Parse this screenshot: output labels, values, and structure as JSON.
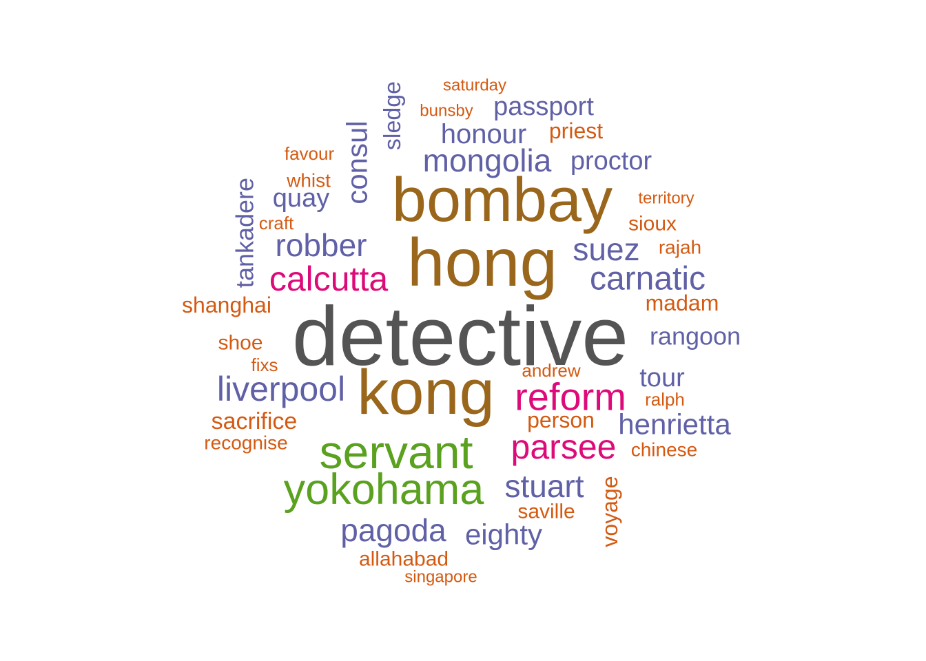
{
  "colors": {
    "gray": "#545454",
    "brown": "#99661b",
    "green": "#59a11e",
    "magenta": "#dd0a79",
    "purple": "#6060a6",
    "orange": "#d45a12"
  },
  "words": [
    {
      "text": "detective",
      "color": "gray"
    },
    {
      "text": "bombay",
      "color": "brown"
    },
    {
      "text": "hong",
      "color": "brown"
    },
    {
      "text": "kong",
      "color": "brown"
    },
    {
      "text": "servant",
      "color": "green"
    },
    {
      "text": "yokohama",
      "color": "green"
    },
    {
      "text": "calcutta",
      "color": "magenta"
    },
    {
      "text": "reform",
      "color": "magenta"
    },
    {
      "text": "parsee",
      "color": "magenta"
    },
    {
      "text": "mongolia",
      "color": "purple"
    },
    {
      "text": "honour",
      "color": "purple"
    },
    {
      "text": "passport",
      "color": "purple"
    },
    {
      "text": "proctor",
      "color": "purple"
    },
    {
      "text": "consul",
      "color": "purple"
    },
    {
      "text": "sledge",
      "color": "purple"
    },
    {
      "text": "tankadere",
      "color": "purple"
    },
    {
      "text": "quay",
      "color": "purple"
    },
    {
      "text": "robber",
      "color": "purple"
    },
    {
      "text": "suez",
      "color": "purple"
    },
    {
      "text": "carnatic",
      "color": "purple"
    },
    {
      "text": "rangoon",
      "color": "purple"
    },
    {
      "text": "tour",
      "color": "purple"
    },
    {
      "text": "liverpool",
      "color": "purple"
    },
    {
      "text": "henrietta",
      "color": "purple"
    },
    {
      "text": "stuart",
      "color": "purple"
    },
    {
      "text": "pagoda",
      "color": "purple"
    },
    {
      "text": "eighty",
      "color": "purple"
    },
    {
      "text": "saturday",
      "color": "orange"
    },
    {
      "text": "bunsby",
      "color": "orange"
    },
    {
      "text": "priest",
      "color": "orange"
    },
    {
      "text": "favour",
      "color": "orange"
    },
    {
      "text": "whist",
      "color": "orange"
    },
    {
      "text": "craft",
      "color": "orange"
    },
    {
      "text": "territory",
      "color": "orange"
    },
    {
      "text": "sioux",
      "color": "orange"
    },
    {
      "text": "rajah",
      "color": "orange"
    },
    {
      "text": "madam",
      "color": "orange"
    },
    {
      "text": "shanghai",
      "color": "orange"
    },
    {
      "text": "shoe",
      "color": "orange"
    },
    {
      "text": "fixs",
      "color": "orange"
    },
    {
      "text": "andrew",
      "color": "orange"
    },
    {
      "text": "ralph",
      "color": "orange"
    },
    {
      "text": "sacrifice",
      "color": "orange"
    },
    {
      "text": "person",
      "color": "orange"
    },
    {
      "text": "recognise",
      "color": "orange"
    },
    {
      "text": "chinese",
      "color": "orange"
    },
    {
      "text": "saville",
      "color": "orange"
    },
    {
      "text": "voyage",
      "color": "orange"
    },
    {
      "text": "allahabad",
      "color": "orange"
    },
    {
      "text": "singapore",
      "color": "orange"
    }
  ]
}
